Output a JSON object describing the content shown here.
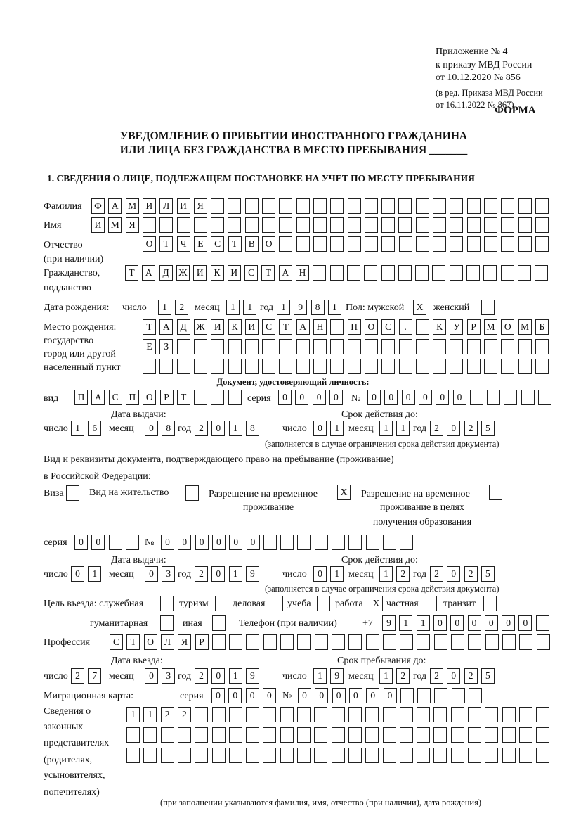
{
  "header": {
    "appendix": "Приложение № 4",
    "order": "к приказу МВД России",
    "order_date": "от 10.12.2020 № 856",
    "edition1": "(в ред. Приказа МВД России",
    "edition2": "от 16.11.2022 № 867)",
    "form": "ФОРМА",
    "title1": "УВЕДОМЛЕНИЕ О ПРИБЫТИИ ИНОСТРАННОГО ГРАЖДАНИНА",
    "title2": "ИЛИ ЛИЦА БЕЗ ГРАЖДАНСТВА В МЕСТО ПРЕБЫВАНИЯ _______",
    "section1": "1. СВЕДЕНИЯ О ЛИЦЕ, ПОДЛЕЖАЩЕМ ПОСТАНОВКЕ НА УЧЕТ ПО МЕСТУ ПРЕБЫВАНИЯ"
  },
  "labels": {
    "surname": "Фамилия",
    "name": "Имя",
    "patronymic": "Отчество",
    "patronymic2": "(при наличии)",
    "citizenship": "Гражданство,",
    "citizenship2": "подданство",
    "birth_date": "Дата рождения:",
    "day": "число",
    "month": "месяц",
    "year": "год",
    "sex": "Пол: мужской",
    "female": "женский",
    "birth_place1": "Место рождения:",
    "birth_place2": "государство",
    "birth_place3": "город или другой",
    "birth_place4": "населенный пункт",
    "id_doc": "Документ, удостоверяющий личность:",
    "kind": "вид",
    "series": "серия",
    "number": "№",
    "issue_date": "Дата выдачи:",
    "valid_until": "Срок действия до:",
    "valid_note": "(заполняется в случае ограничения срока действия документа)",
    "stay_doc1": "Вид и реквизиты документа, подтверждающего право на пребывание (проживание)",
    "stay_doc2": "в Российской Федерации:",
    "visa": "Виза",
    "residence": "Вид на жительство",
    "temp1": "Разрешение на временное",
    "temp2": "проживание",
    "edu1": "Разрешение на временное",
    "edu2": "проживание в целях",
    "edu3": "получения образования",
    "purpose": "Цель въезда: служебная",
    "tourism": "туризм",
    "business": "деловая",
    "study": "учеба",
    "work": "работа",
    "private": "частная",
    "transit": "транзит",
    "humanitarian": "гуманитарная",
    "other": "иная",
    "phone": "Телефон (при наличии)",
    "phone_prefix": "+7",
    "profession": "Профессия",
    "entry_date": "Дата въезда:",
    "stay_until": "Срок пребывания до:",
    "migration_card": "Миграционная карта:",
    "reps1": "Сведения о",
    "reps2": "законных",
    "reps3": "представителях",
    "reps4": "(родителях,",
    "reps5": "усыновителях,",
    "reps6": "попечителях)",
    "reps_note": "(при заполнении указываются фамилия, имя, отчество (при наличии), дата рождения)"
  },
  "values": {
    "surname": "ФАМИЛИЯ",
    "name": "ИМЯ",
    "patronymic": "ОТЧЕСТВО",
    "citizenship": "ТАДЖИКИСТАН",
    "birth_day": "12",
    "birth_month": "11",
    "birth_year": "1981",
    "male": "X",
    "female": "",
    "birth_place1": "ТАДЖИКИСТАН ПОС. КУРМОМБ",
    "birth_place2": "ЕЗ",
    "birth_place3": "",
    "id_kind": "ПАСПОРТ",
    "id_series": "0000",
    "id_number": "000000",
    "id_issue_day": "16",
    "id_issue_month": "08",
    "id_issue_year": "2018",
    "id_valid_day": "01",
    "id_valid_month": "11",
    "id_valid_year": "2025",
    "visa": "",
    "residence": "",
    "temp_residence": "X",
    "edu_residence": "",
    "stay_series": "00",
    "stay_number": "000000",
    "stay_issue_day": "01",
    "stay_issue_month": "03",
    "stay_issue_year": "2019",
    "stay_valid_day": "01",
    "stay_valid_month": "12",
    "stay_valid_year": "2025",
    "p_service": "",
    "p_tourism": "",
    "p_business": "",
    "p_study": "",
    "p_work": "X",
    "p_private": "",
    "p_transit": "",
    "p_humanitarian": "",
    "p_other": "",
    "phone": "911000000",
    "profession": "СТОЛЯР",
    "entry_day": "27",
    "entry_month": "03",
    "entry_year": "2019",
    "stay_day": "19",
    "stay_month": "12",
    "stay_year": "2025",
    "mc_series": "0000",
    "mc_number": "000000",
    "reps1": "1122",
    "reps2": "",
    "reps3": ""
  }
}
